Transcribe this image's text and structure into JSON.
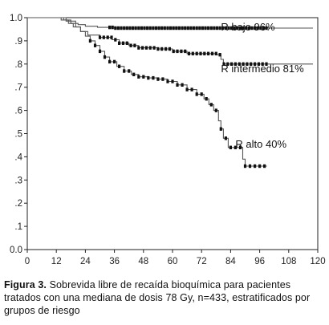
{
  "chart_data": {
    "type": "line",
    "step": true,
    "xlim": [
      0,
      120
    ],
    "ylim": [
      0,
      1.0
    ],
    "x_ticks": [
      0,
      12,
      24,
      36,
      48,
      60,
      72,
      84,
      96,
      108,
      120
    ],
    "y_ticks": [
      0.0,
      0.1,
      0.2,
      0.3,
      0.4,
      0.5,
      0.6,
      0.7,
      0.8,
      0.9,
      1.0
    ],
    "y_tick_labels": [
      "0.0",
      ".1",
      ".2",
      ".3",
      ".4",
      ".5",
      ".6",
      ".7",
      ".8",
      ".9",
      "1.0"
    ],
    "grid": false,
    "line_color": "#555555",
    "marker_color": "#111111",
    "series": [
      {
        "name": "R bajo 96%",
        "steps": [
          [
            0,
            1.0
          ],
          [
            15,
            0.99
          ],
          [
            18,
            0.975
          ],
          [
            21,
            0.97
          ],
          [
            24,
            0.963
          ],
          [
            29,
            0.958
          ],
          [
            36,
            0.955
          ],
          [
            100,
            0.955
          ],
          [
            118,
            0.955
          ]
        ],
        "censor_from": 34,
        "censor_to": 100,
        "censor_step": 1.2,
        "label_xy": [
          80,
          0.945
        ]
      },
      {
        "name": "R intermedio 81%",
        "steps": [
          [
            0,
            1.0
          ],
          [
            14,
            0.99
          ],
          [
            17,
            0.975
          ],
          [
            19,
            0.96
          ],
          [
            22,
            0.94
          ],
          [
            25,
            0.925
          ],
          [
            30,
            0.915
          ],
          [
            35,
            0.905
          ],
          [
            38,
            0.89
          ],
          [
            42,
            0.88
          ],
          [
            46,
            0.87
          ],
          [
            54,
            0.865
          ],
          [
            60,
            0.855
          ],
          [
            66,
            0.845
          ],
          [
            78,
            0.84
          ],
          [
            80,
            0.82
          ],
          [
            81,
            0.8
          ],
          [
            118,
            0.8
          ]
        ],
        "censor_from": 30,
        "censor_to": 100,
        "censor_step": 1.6,
        "label_xy": [
          80,
          0.765
        ]
      },
      {
        "name": "R alto 40%",
        "steps": [
          [
            0,
            1.0
          ],
          [
            16,
            0.985
          ],
          [
            20,
            0.96
          ],
          [
            22,
            0.94
          ],
          [
            24,
            0.92
          ],
          [
            26,
            0.9
          ],
          [
            28,
            0.88
          ],
          [
            30,
            0.855
          ],
          [
            32,
            0.83
          ],
          [
            34,
            0.81
          ],
          [
            37,
            0.79
          ],
          [
            40,
            0.77
          ],
          [
            43,
            0.755
          ],
          [
            46,
            0.745
          ],
          [
            50,
            0.74
          ],
          [
            54,
            0.735
          ],
          [
            58,
            0.725
          ],
          [
            62,
            0.71
          ],
          [
            66,
            0.69
          ],
          [
            70,
            0.67
          ],
          [
            73,
            0.65
          ],
          [
            75,
            0.625
          ],
          [
            77,
            0.6
          ],
          [
            79,
            0.555
          ],
          [
            80,
            0.52
          ],
          [
            81,
            0.48
          ],
          [
            83,
            0.44
          ],
          [
            88,
            0.44
          ],
          [
            89,
            0.39
          ],
          [
            90,
            0.36
          ],
          [
            99,
            0.36
          ]
        ],
        "censor_from": 26,
        "censor_to": 99,
        "censor_step": 2.0,
        "label_xy": [
          86,
          0.44
        ]
      }
    ]
  },
  "caption": {
    "label": "Figura 3.",
    "text": " Sobrevida libre de recaída bioquímica para pacientes tratados con una mediana de dosis 78 Gy, n=433, estratificados por grupos de riesgo"
  }
}
